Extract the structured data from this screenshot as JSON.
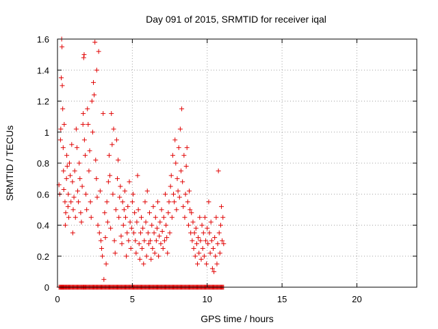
{
  "chart_data": {
    "type": "scatter",
    "title": "Day 091 of 2015, SRMTID for receiver iqal",
    "xlabel": "GPS time / hours",
    "ylabel": "SRMTID / TECUs",
    "xlim": [
      0,
      24
    ],
    "ylim": [
      0,
      1.6
    ],
    "xticks": [
      0,
      5,
      10,
      15,
      20
    ],
    "yticks": [
      0,
      0.2,
      0.4,
      0.6,
      0.8,
      1,
      1.2,
      1.4,
      1.6
    ],
    "xtick_labels": [
      "0",
      "5",
      "10",
      "15",
      "20"
    ],
    "ytick_labels": [
      "0",
      "0.2",
      "0.4",
      "0.6",
      "0.8",
      "1",
      "1.2",
      "1.4",
      "1.6"
    ],
    "grid": true,
    "marker": "+",
    "series_color": "#e00000",
    "series": [
      {
        "name": "SRMTID",
        "points": [
          [
            0.1,
            0.66
          ],
          [
            0.15,
            0.6
          ],
          [
            0.2,
            0.95
          ],
          [
            0.22,
            1.02
          ],
          [
            0.25,
            1.35
          ],
          [
            0.28,
            1.6
          ],
          [
            0.3,
            1.55
          ],
          [
            0.32,
            1.3
          ],
          [
            0.35,
            1.15
          ],
          [
            0.38,
            0.9
          ],
          [
            0.4,
            0.75
          ],
          [
            0.42,
            0.63
          ],
          [
            0.45,
            1.05
          ],
          [
            0.5,
            0.55
          ],
          [
            0.52,
            0.4
          ],
          [
            0.55,
            0.48
          ],
          [
            0.6,
            0.7
          ],
          [
            0.62,
            0.85
          ],
          [
            0.65,
            0.78
          ],
          [
            0.7,
            0.52
          ],
          [
            0.72,
            0.6
          ],
          [
            0.75,
            0.45
          ],
          [
            0.8,
            0.8
          ],
          [
            0.85,
            0.72
          ],
          [
            0.9,
            0.55
          ],
          [
            0.95,
            0.92
          ],
          [
            1.0,
            0.68
          ],
          [
            1.02,
            0.35
          ],
          [
            1.05,
            0.5
          ],
          [
            1.1,
            0.58
          ],
          [
            1.15,
            0.75
          ],
          [
            1.2,
            0.45
          ],
          [
            1.25,
            1.02
          ],
          [
            1.3,
            0.9
          ],
          [
            1.35,
            0.62
          ],
          [
            1.4,
            0.55
          ],
          [
            1.45,
            0.8
          ],
          [
            1.5,
            0.7
          ],
          [
            1.55,
            0.48
          ],
          [
            1.6,
            0.42
          ],
          [
            1.65,
            0.65
          ],
          [
            1.7,
            1.05
          ],
          [
            1.72,
            1.12
          ],
          [
            1.75,
            1.48
          ],
          [
            1.78,
            1.5
          ],
          [
            1.8,
            0.95
          ],
          [
            1.85,
            0.85
          ],
          [
            1.9,
            0.6
          ],
          [
            1.95,
            0.5
          ],
          [
            2.0,
            1.15
          ],
          [
            2.05,
            1.05
          ],
          [
            2.1,
            0.75
          ],
          [
            2.15,
            0.88
          ],
          [
            2.2,
            0.55
          ],
          [
            2.25,
            0.45
          ],
          [
            2.3,
            1.2
          ],
          [
            2.35,
            1.0
          ],
          [
            2.4,
            1.32
          ],
          [
            2.45,
            1.24
          ],
          [
            2.5,
            1.58
          ],
          [
            2.55,
            0.82
          ],
          [
            2.6,
            0.7
          ],
          [
            2.62,
            1.4
          ],
          [
            2.65,
            0.58
          ],
          [
            2.7,
            0.4
          ],
          [
            2.75,
            1.52
          ],
          [
            2.8,
            0.35
          ],
          [
            2.85,
            0.62
          ],
          [
            2.9,
            0.3
          ],
          [
            2.95,
            0.25
          ],
          [
            3.0,
            0.2
          ],
          [
            3.05,
            1.12
          ],
          [
            3.1,
            0.05
          ],
          [
            3.15,
            0.48
          ],
          [
            3.2,
            0.32
          ],
          [
            3.25,
            0.15
          ],
          [
            3.3,
            0.55
          ],
          [
            3.35,
            0.42
          ],
          [
            3.4,
            0.68
          ],
          [
            3.45,
            0.85
          ],
          [
            3.5,
            0.72
          ],
          [
            3.55,
            0.38
          ],
          [
            3.6,
            1.12
          ],
          [
            3.65,
            0.92
          ],
          [
            3.7,
            0.6
          ],
          [
            3.75,
            1.02
          ],
          [
            3.8,
            0.3
          ],
          [
            3.85,
            0.22
          ],
          [
            3.9,
            0.5
          ],
          [
            3.95,
            0.95
          ],
          [
            4.0,
            0.7
          ],
          [
            4.05,
            0.82
          ],
          [
            4.1,
            0.45
          ],
          [
            4.15,
            0.58
          ],
          [
            4.2,
            0.65
          ],
          [
            4.25,
            0.33
          ],
          [
            4.3,
            0.28
          ],
          [
            4.35,
            0.55
          ],
          [
            4.4,
            0.4
          ],
          [
            4.45,
            0.5
          ],
          [
            4.5,
            0.62
          ],
          [
            4.55,
            0.45
          ],
          [
            4.6,
            0.2
          ],
          [
            4.65,
            0.35
          ],
          [
            4.7,
            0.52
          ],
          [
            4.75,
            0.3
          ],
          [
            4.8,
            0.68
          ],
          [
            4.85,
            0.42
          ],
          [
            4.9,
            0.25
          ],
          [
            4.95,
            0.38
          ],
          [
            5.0,
            0.55
          ],
          [
            5.05,
            0.6
          ],
          [
            5.1,
            0.35
          ],
          [
            5.15,
            0.48
          ],
          [
            5.2,
            0.3
          ],
          [
            5.25,
            0.22
          ],
          [
            5.3,
            0.42
          ],
          [
            5.35,
            0.72
          ],
          [
            5.4,
            0.5
          ],
          [
            5.45,
            0.28
          ],
          [
            5.5,
            0.18
          ],
          [
            5.55,
            0.35
          ],
          [
            5.6,
            0.45
          ],
          [
            5.65,
            0.25
          ],
          [
            5.7,
            0.38
          ],
          [
            5.75,
            0.15
          ],
          [
            5.8,
            0.3
          ],
          [
            5.85,
            0.55
          ],
          [
            5.9,
            0.42
          ],
          [
            5.95,
            0.2
          ],
          [
            6.0,
            0.62
          ],
          [
            6.05,
            0.35
          ],
          [
            6.1,
            0.28
          ],
          [
            6.15,
            0.48
          ],
          [
            6.2,
            0.3
          ],
          [
            6.25,
            0.18
          ],
          [
            6.3,
            0.4
          ],
          [
            6.35,
            0.25
          ],
          [
            6.4,
            0.52
          ],
          [
            6.45,
            0.35
          ],
          [
            6.5,
            0.22
          ],
          [
            6.55,
            0.45
          ],
          [
            6.6,
            0.3
          ],
          [
            6.65,
            0.38
          ],
          [
            6.7,
            0.55
          ],
          [
            6.75,
            0.2
          ],
          [
            6.8,
            0.33
          ],
          [
            6.85,
            0.42
          ],
          [
            6.9,
            0.28
          ],
          [
            6.95,
            0.5
          ],
          [
            7.0,
            0.36
          ],
          [
            7.05,
            0.25
          ],
          [
            7.1,
            0.45
          ],
          [
            7.15,
            0.3
          ],
          [
            7.2,
            0.6
          ],
          [
            7.25,
            0.4
          ],
          [
            7.3,
            0.32
          ],
          [
            7.35,
            0.22
          ],
          [
            7.4,
            0.48
          ],
          [
            7.45,
            0.55
          ],
          [
            7.5,
            0.35
          ],
          [
            7.55,
            0.65
          ],
          [
            7.6,
            0.72
          ],
          [
            7.65,
            0.45
          ],
          [
            7.7,
            0.85
          ],
          [
            7.75,
            0.6
          ],
          [
            7.8,
            0.55
          ],
          [
            7.85,
            0.95
          ],
          [
            7.9,
            0.8
          ],
          [
            7.95,
            0.5
          ],
          [
            8.0,
            0.7
          ],
          [
            8.05,
            0.62
          ],
          [
            8.1,
            0.9
          ],
          [
            8.15,
            0.58
          ],
          [
            8.2,
            1.02
          ],
          [
            8.25,
            0.75
          ],
          [
            8.3,
            1.15
          ],
          [
            8.35,
            0.68
          ],
          [
            8.4,
            0.52
          ],
          [
            8.45,
            0.85
          ],
          [
            8.5,
            0.45
          ],
          [
            8.55,
            0.6
          ],
          [
            8.6,
            0.78
          ],
          [
            8.65,
            0.9
          ],
          [
            8.7,
            0.55
          ],
          [
            8.75,
            0.4
          ],
          [
            8.8,
            0.62
          ],
          [
            8.85,
            0.5
          ],
          [
            8.9,
            0.35
          ],
          [
            8.95,
            0.48
          ],
          [
            9.0,
            0.3
          ],
          [
            9.05,
            0.42
          ],
          [
            9.1,
            0.25
          ],
          [
            9.15,
            0.35
          ],
          [
            9.2,
            0.2
          ],
          [
            9.25,
            0.38
          ],
          [
            9.3,
            0.28
          ],
          [
            9.35,
            0.15
          ],
          [
            9.4,
            0.32
          ],
          [
            9.45,
            0.22
          ],
          [
            9.5,
            0.45
          ],
          [
            9.55,
            0.3
          ],
          [
            9.6,
            0.18
          ],
          [
            9.65,
            0.4
          ],
          [
            9.7,
            0.25
          ],
          [
            9.75,
            0.35
          ],
          [
            9.8,
            0.2
          ],
          [
            9.85,
            0.45
          ],
          [
            9.9,
            0.3
          ],
          [
            9.95,
            0.15
          ],
          [
            10.0,
            0.38
          ],
          [
            10.05,
            0.28
          ],
          [
            10.1,
            0.55
          ],
          [
            10.15,
            0.35
          ],
          [
            10.2,
            0.22
          ],
          [
            10.25,
            0.42
          ],
          [
            10.3,
            0.3
          ],
          [
            10.35,
            0.12
          ],
          [
            10.4,
            0.25
          ],
          [
            10.45,
            0.1
          ],
          [
            10.5,
            0.32
          ],
          [
            10.55,
            0.2
          ],
          [
            10.6,
            0.45
          ],
          [
            10.65,
            0.15
          ],
          [
            10.7,
            0.28
          ],
          [
            10.75,
            0.75
          ],
          [
            10.8,
            0.35
          ],
          [
            10.85,
            0.22
          ],
          [
            10.9,
            0.4
          ],
          [
            10.95,
            0.52
          ],
          [
            11.0,
            0.3
          ],
          [
            11.05,
            0.45
          ],
          [
            11.1,
            0.28
          ]
        ]
      }
    ]
  }
}
